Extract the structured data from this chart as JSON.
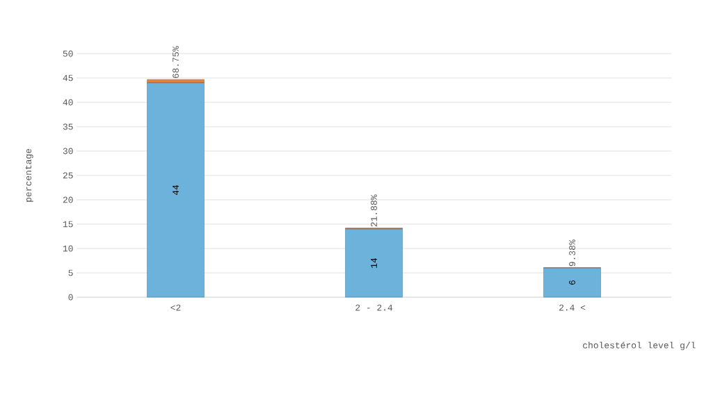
{
  "chart_data": {
    "type": "bar",
    "stacked": true,
    "xlabel": "cholestérol level g/l",
    "ylabel": "percentage",
    "categories": [
      "<2",
      "2 - 2.4",
      "2.4 <"
    ],
    "series": [
      {
        "color": "#6db2da",
        "values": [
          44,
          14,
          6
        ],
        "value_labels": [
          "44",
          "14",
          "6"
        ]
      },
      {
        "color": "#ed7d31",
        "values": [
          0.6875,
          0.2188,
          0.0938
        ],
        "value_labels": [
          "68.75%",
          "21.88%",
          "9.38%"
        ]
      }
    ],
    "ylim": [
      0,
      50
    ],
    "yticks": [
      0,
      5,
      10,
      15,
      20,
      25,
      30,
      35,
      40,
      45,
      50
    ],
    "grid": "y"
  }
}
